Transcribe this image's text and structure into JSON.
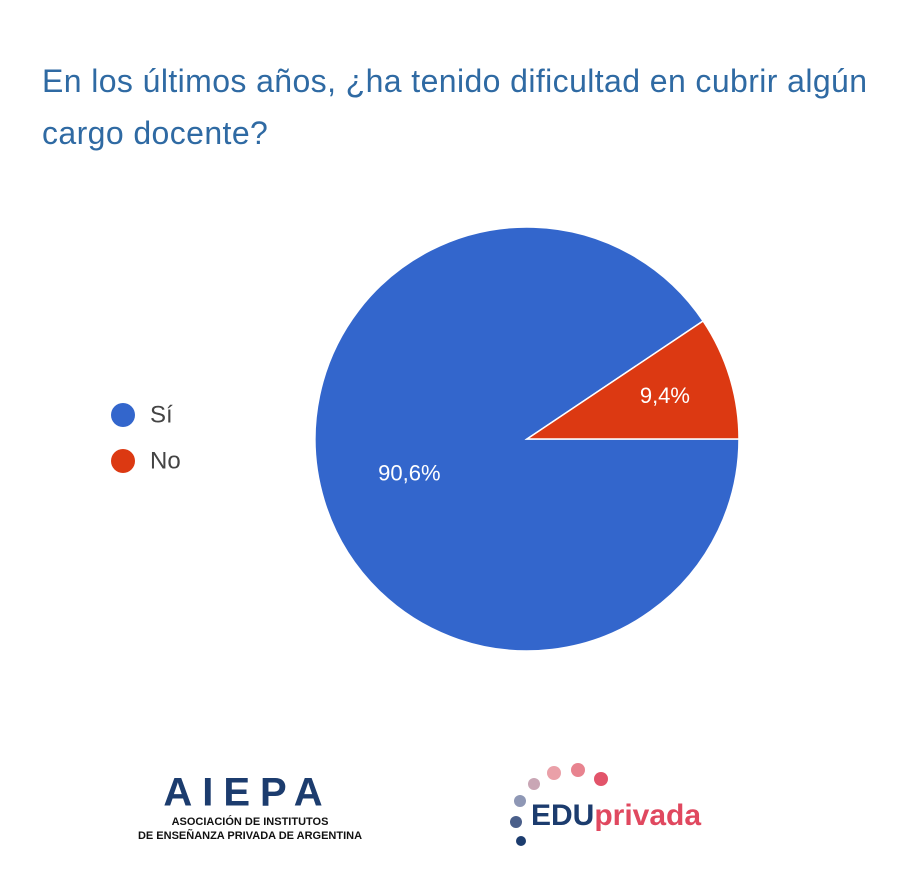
{
  "chart_data": {
    "type": "pie",
    "title": "En los últimos años, ¿ha tenido dificultad en cubrir algún cargo docente?",
    "categories": [
      "Sí",
      "No"
    ],
    "values": [
      90.6,
      9.4
    ],
    "value_labels": [
      "90,6%",
      "9,4%"
    ],
    "colors": [
      "#3366cc",
      "#dc3912"
    ],
    "legend": "left"
  },
  "footer": {
    "left_logo": {
      "name": "AIEPA",
      "line1": "ASOCIACIÓN DE INSTITUTOS",
      "line2": "DE ENSEÑANZA PRIVADA DE ARGENTINA"
    },
    "right_logo": {
      "part1": "EDU",
      "part2": "privada"
    }
  }
}
